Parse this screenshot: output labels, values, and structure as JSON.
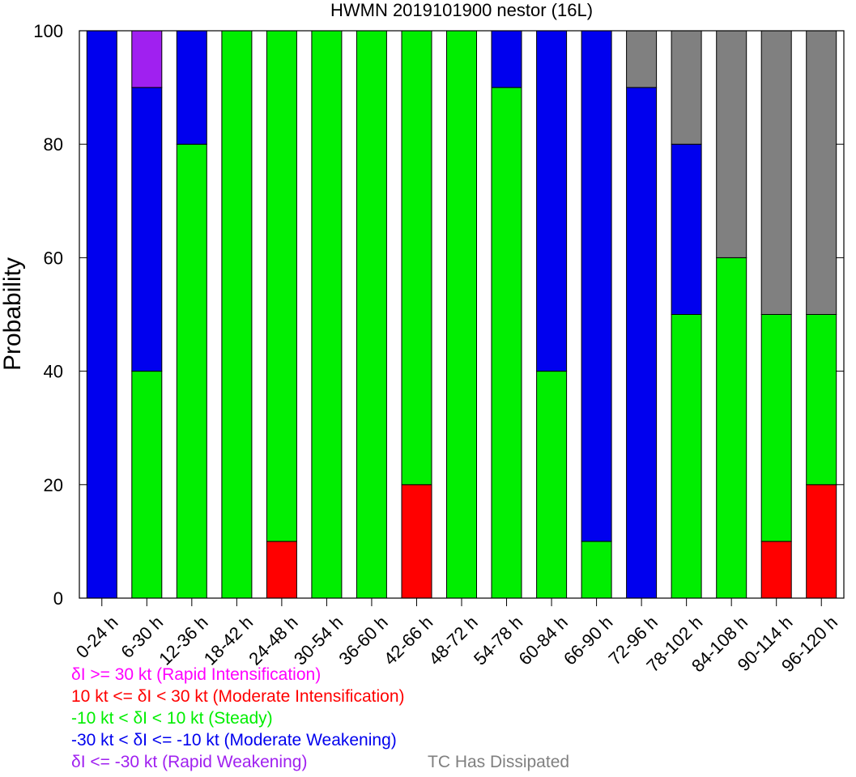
{
  "chart_data": {
    "type": "bar",
    "stacked": true,
    "title": "HWMN 2019101900 nestor (16L)",
    "xlabel": "",
    "ylabel": "Probability",
    "ylim": [
      0,
      100
    ],
    "yticks": [
      "0",
      "20",
      "40",
      "60",
      "80",
      "100"
    ],
    "categories": [
      "0-24 h",
      "6-30 h",
      "12-36 h",
      "18-42 h",
      "24-48 h",
      "30-54 h",
      "36-60 h",
      "42-66 h",
      "48-72 h",
      "54-78 h",
      "60-84 h",
      "66-90 h",
      "72-96 h",
      "78-102 h",
      "84-108 h",
      "90-114 h",
      "96-120 h"
    ],
    "series": [
      {
        "name": "10 kt <= δI < 30 kt (Moderate Intensification)",
        "color": "#ff0000",
        "values": [
          0,
          0,
          0,
          0,
          10,
          0,
          0,
          20,
          0,
          0,
          0,
          0,
          0,
          0,
          0,
          10,
          20
        ]
      },
      {
        "name": "-10 kt < δI < 10 kt (Steady)",
        "color": "#00ee00",
        "values": [
          0,
          40,
          80,
          100,
          90,
          100,
          100,
          80,
          100,
          90,
          40,
          10,
          0,
          50,
          60,
          40,
          30
        ]
      },
      {
        "name": "-30 kt < δI <= -10 kt (Moderate Weakening)",
        "color": "#0000ee",
        "values": [
          100,
          50,
          20,
          0,
          0,
          0,
          0,
          0,
          0,
          10,
          60,
          90,
          90,
          30,
          0,
          0,
          0
        ]
      },
      {
        "name": "δI <= -30 kt (Rapid Weakening)",
        "color": "#a020f0",
        "values": [
          0,
          10,
          0,
          0,
          0,
          0,
          0,
          0,
          0,
          0,
          0,
          0,
          0,
          0,
          0,
          0,
          0
        ]
      },
      {
        "name": "TC Has Dissipated",
        "color": "#808080",
        "values": [
          0,
          0,
          0,
          0,
          0,
          0,
          0,
          0,
          0,
          0,
          0,
          0,
          10,
          20,
          40,
          50,
          50
        ]
      }
    ],
    "legend": {
      "placement": "bottom-left",
      "entries": [
        {
          "text": "δI >= 30 kt (Rapid Intensification)",
          "color": "#ff00ff"
        },
        {
          "text": "10 kt <= δI < 30 kt (Moderate Intensification)",
          "color": "#ff0000"
        },
        {
          "text": "-10 kt < δI < 10 kt (Steady)",
          "color": "#00ee00"
        },
        {
          "text": "-30 kt < δI <= -10 kt (Moderate Weakening)",
          "color": "#0000ee"
        },
        {
          "text": "δI <= -30 kt (Rapid Weakening)",
          "color": "#a020f0"
        },
        {
          "text": "TC Has Dissipated",
          "color": "#808080"
        }
      ]
    },
    "grid": false
  }
}
